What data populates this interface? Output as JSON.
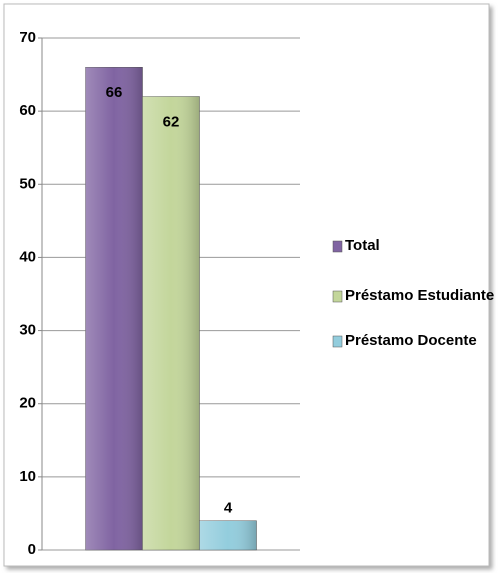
{
  "chart_data": {
    "type": "bar",
    "categories": [
      null
    ],
    "series": [
      {
        "name": "Total",
        "color": "#8064a2",
        "values": [
          66
        ]
      },
      {
        "name": "Préstamo Estudiante",
        "color": "#c3d69b",
        "values": [
          62
        ]
      },
      {
        "name": "Préstamo Docente",
        "color": "#93cddd",
        "values": [
          4
        ]
      }
    ],
    "ylim": [
      0,
      70
    ],
    "yticks": [
      0,
      10,
      20,
      30,
      40,
      50,
      60,
      70
    ],
    "grid": true,
    "legend": "right"
  }
}
